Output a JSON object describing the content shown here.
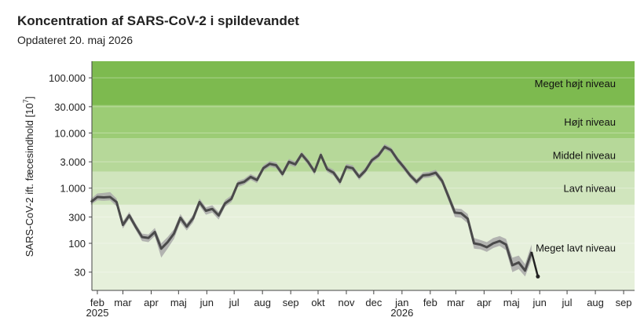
{
  "header": {
    "title": "Koncentration af SARS-CoV-2 i spildevandet",
    "subtitle": "Opdateret 20. maj 2026"
  },
  "chart_data": {
    "type": "line",
    "title": "Koncentration af SARS-CoV-2 i spildevandet",
    "subtitle": "Opdateret 20. maj 2026",
    "ylabel_main": "SARS-CoV-2 ift. fæcesindhold [10",
    "ylabel_exp": "7",
    "ylabel_close": "]",
    "y_scale": "log",
    "ylim": [
      14,
      200000
    ],
    "xlim": [
      "2025-01-26",
      "2026-09-13"
    ],
    "y_ticks": [
      {
        "value": 30,
        "label": "30"
      },
      {
        "value": 100,
        "label": "100"
      },
      {
        "value": 300,
        "label": "300"
      },
      {
        "value": 1000,
        "label": "1.000"
      },
      {
        "value": 3000,
        "label": "3.000"
      },
      {
        "value": 10000,
        "label": "10.000"
      },
      {
        "value": 30000,
        "label": "30.000"
      },
      {
        "value": 100000,
        "label": "100.000"
      }
    ],
    "x_ticks": [
      {
        "date": "2025-02-01",
        "label": "feb",
        "year": "2025"
      },
      {
        "date": "2025-03-01",
        "label": "mar",
        "year": ""
      },
      {
        "date": "2025-04-01",
        "label": "apr",
        "year": ""
      },
      {
        "date": "2025-05-01",
        "label": "maj",
        "year": ""
      },
      {
        "date": "2025-06-01",
        "label": "jun",
        "year": ""
      },
      {
        "date": "2025-07-01",
        "label": "jul",
        "year": ""
      },
      {
        "date": "2025-08-01",
        "label": "aug",
        "year": ""
      },
      {
        "date": "2025-09-01",
        "label": "sep",
        "year": ""
      },
      {
        "date": "2025-10-01",
        "label": "okt",
        "year": ""
      },
      {
        "date": "2025-11-01",
        "label": "nov",
        "year": ""
      },
      {
        "date": "2025-12-01",
        "label": "dec",
        "year": ""
      },
      {
        "date": "2026-01-01",
        "label": "jan",
        "year": "2026"
      },
      {
        "date": "2026-02-01",
        "label": "feb",
        "year": ""
      },
      {
        "date": "2026-03-01",
        "label": "mar",
        "year": ""
      },
      {
        "date": "2026-04-01",
        "label": "apr",
        "year": ""
      },
      {
        "date": "2026-05-01",
        "label": "maj",
        "year": ""
      },
      {
        "date": "2026-06-01",
        "label": "jun",
        "year": ""
      },
      {
        "date": "2026-07-01",
        "label": "jul",
        "year": ""
      },
      {
        "date": "2026-08-01",
        "label": "aug",
        "year": ""
      },
      {
        "date": "2026-09-01",
        "label": "sep",
        "year": ""
      }
    ],
    "zones": [
      {
        "label": "Meget lavt niveau",
        "from": 14,
        "to": 500,
        "color": "#e6f0db"
      },
      {
        "label": "Lavt niveau",
        "from": 500,
        "to": 2000,
        "color": "#d0e5bd"
      },
      {
        "label": "Middel niveau",
        "from": 2000,
        "to": 8000,
        "color": "#b6d899"
      },
      {
        "label": "Højt niveau",
        "from": 8000,
        "to": 32000,
        "color": "#9ccc75"
      },
      {
        "label": "Meget højt niveau",
        "from": 32000,
        "to": 200000,
        "color": "#7dba4f"
      }
    ],
    "colors": {
      "line": "#4a4a4a",
      "band": "#a8a8a8",
      "last_segment": "#222222"
    },
    "grid": true,
    "series": [
      {
        "values": [
          {
            "x": "2025-01-25",
            "y": 560,
            "lo": 500,
            "hi": 640
          },
          {
            "x": "2025-02-01",
            "y": 690,
            "lo": 600,
            "hi": 800
          },
          {
            "x": "2025-02-08",
            "y": 680,
            "lo": 590,
            "hi": 820
          },
          {
            "x": "2025-02-15",
            "y": 690,
            "lo": 600,
            "hi": 850
          },
          {
            "x": "2025-02-22",
            "y": 560,
            "lo": 470,
            "hi": 650
          },
          {
            "x": "2025-03-01",
            "y": 215,
            "lo": 185,
            "hi": 250
          },
          {
            "x": "2025-03-08",
            "y": 320,
            "lo": 280,
            "hi": 370
          },
          {
            "x": "2025-03-15",
            "y": 200,
            "lo": 175,
            "hi": 230
          },
          {
            "x": "2025-03-22",
            "y": 130,
            "lo": 110,
            "hi": 150
          },
          {
            "x": "2025-03-29",
            "y": 125,
            "lo": 105,
            "hi": 145
          },
          {
            "x": "2025-04-05",
            "y": 160,
            "lo": 135,
            "hi": 190
          },
          {
            "x": "2025-04-12",
            "y": 80,
            "lo": 55,
            "hi": 100
          },
          {
            "x": "2025-04-19",
            "y": 105,
            "lo": 80,
            "hi": 130
          },
          {
            "x": "2025-04-26",
            "y": 150,
            "lo": 120,
            "hi": 180
          },
          {
            "x": "2025-05-03",
            "y": 290,
            "lo": 240,
            "hi": 340
          },
          {
            "x": "2025-05-10",
            "y": 200,
            "lo": 170,
            "hi": 230
          },
          {
            "x": "2025-05-17",
            "y": 285,
            "lo": 240,
            "hi": 330
          },
          {
            "x": "2025-05-24",
            "y": 560,
            "lo": 480,
            "hi": 650
          },
          {
            "x": "2025-05-31",
            "y": 390,
            "lo": 330,
            "hi": 450
          },
          {
            "x": "2025-06-07",
            "y": 420,
            "lo": 360,
            "hi": 490
          },
          {
            "x": "2025-06-14",
            "y": 320,
            "lo": 270,
            "hi": 370
          },
          {
            "x": "2025-06-21",
            "y": 530,
            "lo": 460,
            "hi": 610
          },
          {
            "x": "2025-06-28",
            "y": 640,
            "lo": 560,
            "hi": 740
          },
          {
            "x": "2025-07-05",
            "y": 1200,
            "lo": 1050,
            "hi": 1350
          },
          {
            "x": "2025-07-12",
            "y": 1300,
            "lo": 1150,
            "hi": 1480
          },
          {
            "x": "2025-07-19",
            "y": 1600,
            "lo": 1420,
            "hi": 1800
          },
          {
            "x": "2025-07-26",
            "y": 1400,
            "lo": 1230,
            "hi": 1580
          },
          {
            "x": "2025-08-02",
            "y": 2300,
            "lo": 2050,
            "hi": 2600
          },
          {
            "x": "2025-08-09",
            "y": 2750,
            "lo": 2450,
            "hi": 3100
          },
          {
            "x": "2025-08-16",
            "y": 2600,
            "lo": 2300,
            "hi": 2950
          },
          {
            "x": "2025-08-23",
            "y": 1800,
            "lo": 1600,
            "hi": 2050
          },
          {
            "x": "2025-08-30",
            "y": 3000,
            "lo": 2650,
            "hi": 3400
          },
          {
            "x": "2025-09-06",
            "y": 2700,
            "lo": 2400,
            "hi": 3050
          },
          {
            "x": "2025-09-13",
            "y": 4100,
            "lo": 3650,
            "hi": 4600
          },
          {
            "x": "2025-09-20",
            "y": 3000,
            "lo": 2650,
            "hi": 3400
          },
          {
            "x": "2025-09-27",
            "y": 2000,
            "lo": 1750,
            "hi": 2250
          },
          {
            "x": "2025-10-04",
            "y": 4000,
            "lo": 3550,
            "hi": 4500
          },
          {
            "x": "2025-10-11",
            "y": 2200,
            "lo": 1950,
            "hi": 2500
          },
          {
            "x": "2025-10-18",
            "y": 1900,
            "lo": 1680,
            "hi": 2150
          },
          {
            "x": "2025-10-25",
            "y": 1300,
            "lo": 1140,
            "hi": 1480
          },
          {
            "x": "2025-11-01",
            "y": 2450,
            "lo": 2180,
            "hi": 2750
          },
          {
            "x": "2025-11-08",
            "y": 2300,
            "lo": 2050,
            "hi": 2600
          },
          {
            "x": "2025-11-15",
            "y": 1600,
            "lo": 1400,
            "hi": 1820
          },
          {
            "x": "2025-11-22",
            "y": 2100,
            "lo": 1870,
            "hi": 2380
          },
          {
            "x": "2025-11-29",
            "y": 3200,
            "lo": 2850,
            "hi": 3600
          },
          {
            "x": "2025-12-06",
            "y": 3900,
            "lo": 3450,
            "hi": 4400
          },
          {
            "x": "2025-12-13",
            "y": 5600,
            "lo": 5000,
            "hi": 6300
          },
          {
            "x": "2025-12-20",
            "y": 4900,
            "lo": 4350,
            "hi": 5500
          },
          {
            "x": "2025-12-27",
            "y": 3300,
            "lo": 2900,
            "hi": 3700
          },
          {
            "x": "2026-01-03",
            "y": 2400,
            "lo": 2120,
            "hi": 2700
          },
          {
            "x": "2026-01-10",
            "y": 1700,
            "lo": 1500,
            "hi": 1920
          },
          {
            "x": "2026-01-17",
            "y": 1300,
            "lo": 1150,
            "hi": 1470
          },
          {
            "x": "2026-01-24",
            "y": 1700,
            "lo": 1500,
            "hi": 1920
          },
          {
            "x": "2026-01-31",
            "y": 1750,
            "lo": 1550,
            "hi": 1980
          },
          {
            "x": "2026-02-07",
            "y": 1900,
            "lo": 1680,
            "hi": 2150
          },
          {
            "x": "2026-02-14",
            "y": 1350,
            "lo": 1180,
            "hi": 1550
          },
          {
            "x": "2026-02-21",
            "y": 700,
            "lo": 590,
            "hi": 820
          },
          {
            "x": "2026-02-28",
            "y": 360,
            "lo": 300,
            "hi": 430
          },
          {
            "x": "2026-03-07",
            "y": 350,
            "lo": 290,
            "hi": 420
          },
          {
            "x": "2026-03-14",
            "y": 280,
            "lo": 230,
            "hi": 340
          },
          {
            "x": "2026-03-21",
            "y": 100,
            "lo": 80,
            "hi": 125
          },
          {
            "x": "2026-03-28",
            "y": 95,
            "lo": 78,
            "hi": 115
          },
          {
            "x": "2026-04-04",
            "y": 85,
            "lo": 70,
            "hi": 105
          },
          {
            "x": "2026-04-11",
            "y": 100,
            "lo": 82,
            "hi": 125
          },
          {
            "x": "2026-04-18",
            "y": 110,
            "lo": 90,
            "hi": 135
          },
          {
            "x": "2026-04-25",
            "y": 95,
            "lo": 75,
            "hi": 120
          },
          {
            "x": "2026-05-02",
            "y": 40,
            "lo": 30,
            "hi": 55
          },
          {
            "x": "2026-05-09",
            "y": 45,
            "lo": 34,
            "hi": 60
          },
          {
            "x": "2026-05-16",
            "y": 32,
            "lo": 25,
            "hi": 42
          },
          {
            "x": "2026-05-23",
            "y": 70,
            "lo": 50,
            "hi": 95
          }
        ]
      },
      {
        "values": [
          {
            "x": "2026-05-23",
            "y": 70
          },
          {
            "x": "2026-05-30",
            "y": 25
          }
        ]
      }
    ]
  }
}
